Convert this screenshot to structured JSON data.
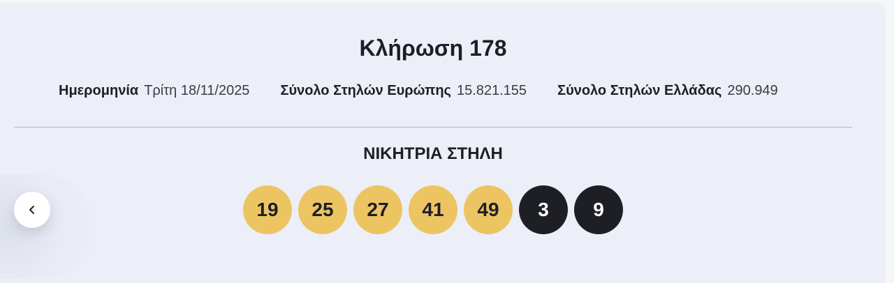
{
  "draw": {
    "title": "Κλήρωση 178",
    "meta": [
      {
        "label": "Ημερομηνία",
        "value": "Τρίτη 18/11/2025"
      },
      {
        "label": "Σύνολο Στηλών Ευρώπης",
        "value": "15.821.155"
      },
      {
        "label": "Σύνολο Στηλών Ελλάδας",
        "value": "290.949"
      }
    ]
  },
  "winning": {
    "title": "ΝΙΚΗΤΡΙΑ ΣΤΗΛΗ",
    "main_numbers": [
      "19",
      "25",
      "27",
      "41",
      "49"
    ],
    "bonus_numbers": [
      "3",
      "9"
    ]
  },
  "nav": {
    "prev_icon": "chevron-left-icon"
  },
  "colors": {
    "main_ball": "#ecc462",
    "bonus_ball": "#1d1f24",
    "background": "#eceff7"
  }
}
